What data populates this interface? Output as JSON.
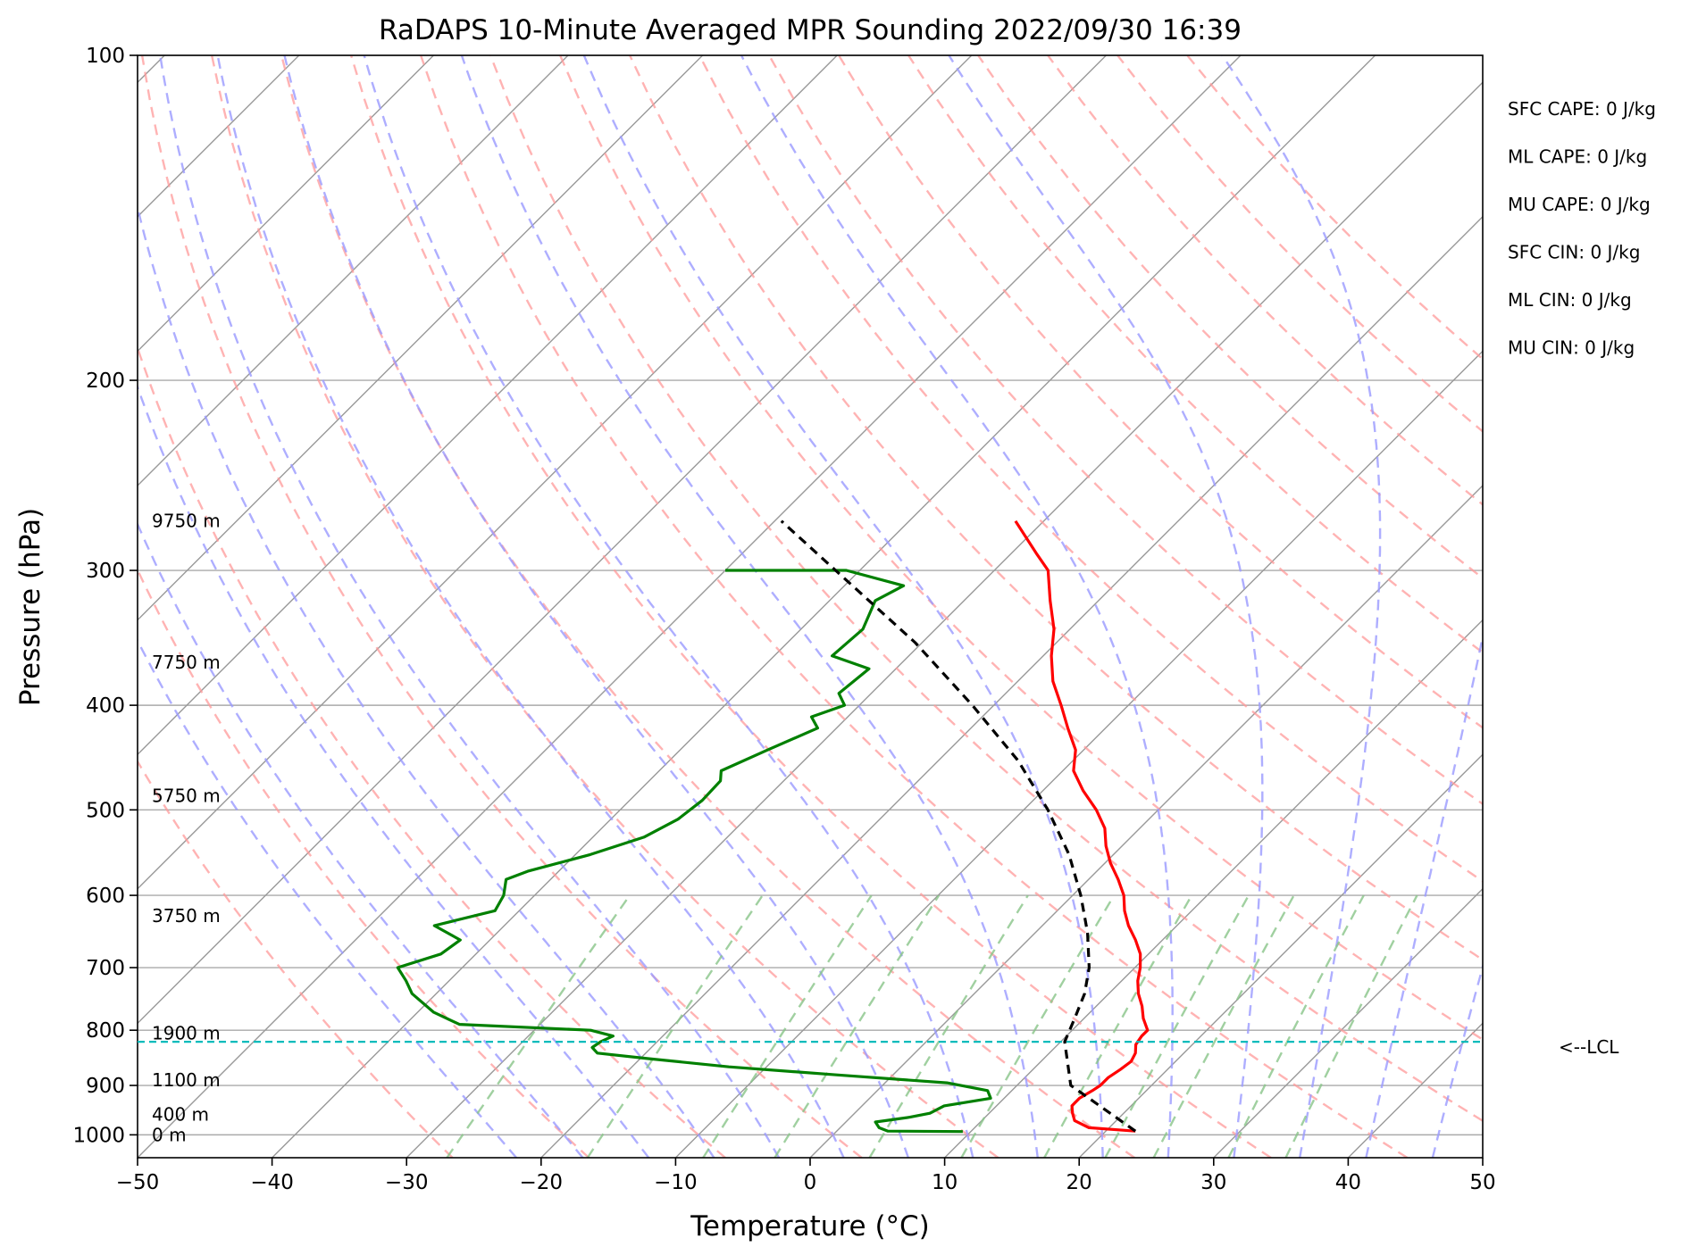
{
  "chart_data": {
    "type": "line",
    "title": "RaDAPS 10-Minute Averaged MPR Sounding 2022/09/30 16:39",
    "xlabel": "Temperature (°C)",
    "ylabel": "Pressure (hPa)",
    "xlim": [
      -50,
      50
    ],
    "ylim": [
      1050,
      100
    ],
    "yscale": "log",
    "skew": true,
    "grid": true,
    "x_ticks": [
      "−50",
      "−40",
      "−30",
      "−20",
      "−10",
      "0",
      "10",
      "20",
      "30",
      "40",
      "50"
    ],
    "y_ticks": [
      "100",
      "200",
      "300",
      "400",
      "500",
      "600",
      "700",
      "800",
      "900",
      "1000"
    ],
    "x_tick_values": [
      -50,
      -40,
      -30,
      -20,
      -10,
      0,
      10,
      20,
      30,
      40,
      50
    ],
    "y_tick_values": [
      100,
      200,
      300,
      400,
      500,
      600,
      700,
      800,
      900,
      1000
    ],
    "series": [
      {
        "name": "",
        "role": "temperature",
        "color": "#ff0000",
        "points": [
          [
            992,
            22.2
          ],
          [
            985,
            18.5
          ],
          [
            970,
            16.9
          ],
          [
            955,
            16.2
          ],
          [
            940,
            15.6
          ],
          [
            925,
            15.6
          ],
          [
            910,
            16
          ],
          [
            900,
            16.2
          ],
          [
            885,
            16.2
          ],
          [
            870,
            16.5
          ],
          [
            855,
            16.7
          ],
          [
            840,
            16.4
          ],
          [
            825,
            15.8
          ],
          [
            810,
            15.6
          ],
          [
            800,
            15.6
          ],
          [
            780,
            14.4
          ],
          [
            760,
            13.4
          ],
          [
            740,
            12.2
          ],
          [
            720,
            11.2
          ],
          [
            700,
            10.4
          ],
          [
            680,
            9.4
          ],
          [
            660,
            8
          ],
          [
            640,
            6.4
          ],
          [
            620,
            5
          ],
          [
            600,
            3.8
          ],
          [
            580,
            2.2
          ],
          [
            560,
            0.4
          ],
          [
            540,
            -1.2
          ],
          [
            520,
            -2.6
          ],
          [
            500,
            -4.6
          ],
          [
            480,
            -7
          ],
          [
            460,
            -9.2
          ],
          [
            440,
            -10.6
          ],
          [
            420,
            -12.8
          ],
          [
            400,
            -15
          ],
          [
            380,
            -17.4
          ],
          [
            360,
            -19.4
          ],
          [
            340,
            -21.2
          ],
          [
            320,
            -23.6
          ],
          [
            300,
            -26
          ],
          [
            290,
            -28
          ],
          [
            270,
            -32.1
          ]
        ]
      },
      {
        "name": "",
        "role": "dewpoint",
        "color": "#008000",
        "points": [
          [
            993,
            9.4
          ],
          [
            992,
            3.8
          ],
          [
            985,
            2.9
          ],
          [
            973,
            2.2
          ],
          [
            963,
            4.4
          ],
          [
            955,
            5.6
          ],
          [
            940,
            6.1
          ],
          [
            925,
            9
          ],
          [
            910,
            8.2
          ],
          [
            895,
            4.6
          ],
          [
            880,
            -4.2
          ],
          [
            865,
            -12.8
          ],
          [
            850,
            -19.4
          ],
          [
            840,
            -23.6
          ],
          [
            830,
            -24.4
          ],
          [
            820,
            -24.2
          ],
          [
            810,
            -23.7
          ],
          [
            800,
            -25.8
          ],
          [
            790,
            -36
          ],
          [
            770,
            -38.8
          ],
          [
            740,
            -41.8
          ],
          [
            720,
            -43.2
          ],
          [
            700,
            -44.8
          ],
          [
            680,
            -42.6
          ],
          [
            660,
            -42.2
          ],
          [
            640,
            -45.2
          ],
          [
            620,
            -41.8
          ],
          [
            600,
            -42.3
          ],
          [
            580,
            -43.3
          ],
          [
            570,
            -42.3
          ],
          [
            550,
            -38.9
          ],
          [
            530,
            -36.2
          ],
          [
            510,
            -35
          ],
          [
            490,
            -34.6
          ],
          [
            470,
            -34.7
          ],
          [
            460,
            -35.4
          ],
          [
            440,
            -33.5
          ],
          [
            420,
            -31.4
          ],
          [
            410,
            -32.7
          ],
          [
            400,
            -31.1
          ],
          [
            390,
            -32.4
          ],
          [
            370,
            -32
          ],
          [
            360,
            -35.7
          ],
          [
            340,
            -35.4
          ],
          [
            320,
            -36.6
          ],
          [
            310,
            -35.6
          ],
          [
            300,
            -41
          ],
          [
            300,
            -50
          ]
        ]
      },
      {
        "name": "",
        "role": "parcel",
        "color": "#000000",
        "points": [
          [
            992,
            22.2
          ],
          [
            900,
            14
          ],
          [
            820,
            10.3
          ],
          [
            780,
            9.3
          ],
          [
            740,
            8.2
          ],
          [
            700,
            6.6
          ],
          [
            650,
            3.9
          ],
          [
            600,
            0.6
          ],
          [
            550,
            -3.3
          ],
          [
            500,
            -8.2
          ],
          [
            450,
            -14.1
          ],
          [
            400,
            -21.6
          ],
          [
            350,
            -30.5
          ],
          [
            300,
            -41.8
          ],
          [
            270,
            -49.5
          ]
        ]
      }
    ],
    "lcl": {
      "pressure": 820,
      "label": "<--LCL",
      "color": "#00bbbb"
    },
    "height_labels": [
      {
        "text": "9750 m",
        "pressure": 270
      },
      {
        "text": "7750 m",
        "pressure": 365
      },
      {
        "text": "5750 m",
        "pressure": 485
      },
      {
        "text": "3750 m",
        "pressure": 627
      },
      {
        "text": "1900 m",
        "pressure": 805
      },
      {
        "text": "1100 m",
        "pressure": 890
      },
      {
        "text": "400 m",
        "pressure": 957
      },
      {
        "text": "0 m",
        "pressure": 1000
      }
    ],
    "annotations": [
      "SFC CAPE: 0 J/kg",
      "ML CAPE: 0 J/kg",
      "MU CAPE: 0 J/kg",
      "SFC CIN: 0 J/kg",
      "ML CIN: 0 J/kg",
      "MU CIN: 0 J/kg"
    ],
    "background_colors": {
      "isotherms": "#999999",
      "dry_adiabats": "#ff9a9a",
      "moist_adiabats": "#9a9aff",
      "mixing_ratio": "#88c488",
      "pressure_grid": "#aaaaaa"
    }
  }
}
